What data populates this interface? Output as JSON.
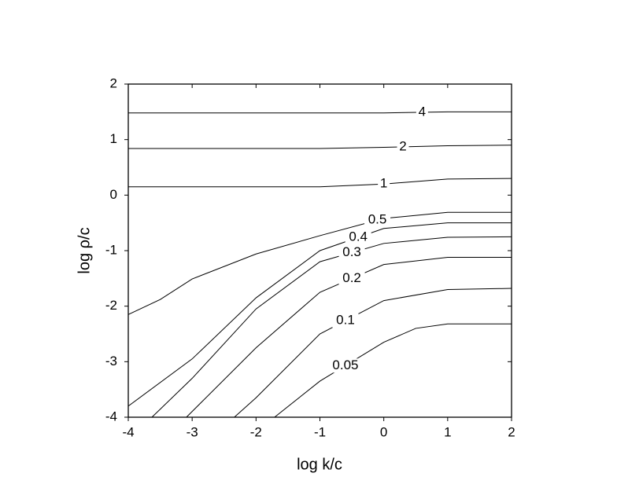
{
  "chart_data": {
    "type": "contour",
    "xlabel": "log k/c",
    "ylabel": "log ρ/c",
    "xlim": [
      -4,
      2
    ],
    "ylim": [
      -4,
      2
    ],
    "xticks": [
      -4,
      -3,
      -2,
      -1,
      0,
      1,
      2
    ],
    "yticks": [
      -4,
      -3,
      -2,
      -1,
      0,
      1,
      2
    ],
    "color": "#000000",
    "series": [
      {
        "name": "4",
        "x": [
          -4,
          0,
          1,
          2
        ],
        "values": [
          1.48,
          1.48,
          1.5,
          1.5
        ]
      },
      {
        "name": "2",
        "x": [
          -4,
          -1,
          0,
          1,
          2
        ],
        "values": [
          0.84,
          0.84,
          0.86,
          0.89,
          0.9
        ]
      },
      {
        "name": "1",
        "x": [
          -4,
          -1,
          0,
          1,
          2
        ],
        "values": [
          0.15,
          0.15,
          0.2,
          0.29,
          0.3
        ]
      },
      {
        "name": "0.5",
        "x": [
          -4,
          -3.5,
          -3,
          -2,
          -1,
          0,
          1,
          2
        ],
        "values": [
          -2.15,
          -1.88,
          -1.51,
          -1.06,
          -0.73,
          -0.42,
          -0.31,
          -0.31
        ]
      },
      {
        "name": "0.4",
        "x": [
          -4,
          -3,
          -2,
          -1,
          0,
          1,
          2
        ],
        "values": [
          -3.8,
          -2.95,
          -1.85,
          -1.0,
          -0.6,
          -0.5,
          -0.5
        ]
      },
      {
        "name": "0.3",
        "x": [
          -3.63,
          -3,
          -2,
          -1,
          0,
          1,
          2
        ],
        "values": [
          -4,
          -3.3,
          -2.05,
          -1.2,
          -0.87,
          -0.76,
          -0.75
        ]
      },
      {
        "name": "0.2",
        "x": [
          -3.09,
          -2,
          -1,
          0,
          1,
          2
        ],
        "values": [
          -4,
          -2.75,
          -1.75,
          -1.25,
          -1.12,
          -1.12
        ]
      },
      {
        "name": "0.1",
        "x": [
          -2.34,
          -2,
          -1,
          0,
          1,
          2
        ],
        "values": [
          -4,
          -3.65,
          -2.5,
          -1.9,
          -1.7,
          -1.68
        ]
      },
      {
        "name": "0.05",
        "x": [
          -1.71,
          -1,
          0,
          0.5,
          1,
          2
        ],
        "values": [
          -4,
          -3.35,
          -2.65,
          -2.4,
          -2.32,
          -2.32
        ]
      }
    ]
  }
}
